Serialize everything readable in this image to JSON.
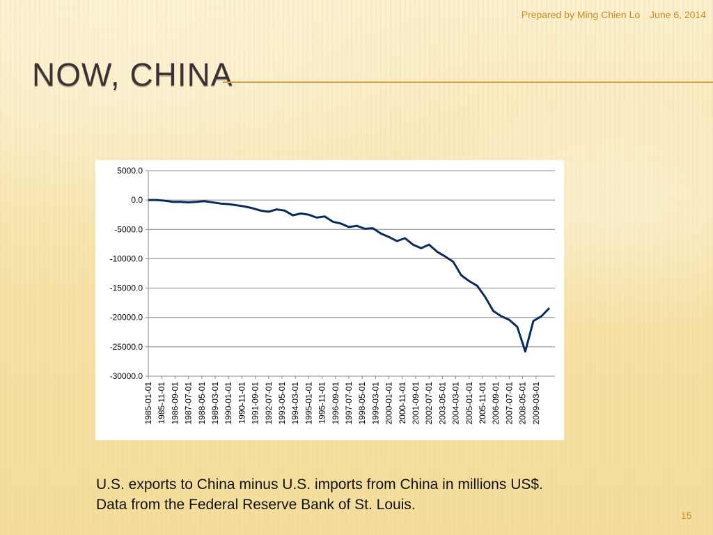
{
  "slide": {
    "author_note": "Prepared by Ming Chien Lo",
    "date": "June 6, 2014",
    "title": "Now, China",
    "caption": "U.S. exports to China minus U.S. imports from China in millions US$. Data from the Federal Reserve Bank of St. Louis.",
    "page_number": "15"
  },
  "colors": {
    "line": "#0b2a5c",
    "grid": "#888888",
    "accent": "#c48a2a",
    "title": "#3b3333"
  },
  "chart_data": {
    "type": "line",
    "title": "",
    "xlabel": "",
    "ylabel": "",
    "ylim": [
      -30000,
      5000
    ],
    "ytick_labels": [
      "5000.0",
      "0.0",
      "-5000.0",
      "-10000.0",
      "-15000.0",
      "-20000.0",
      "-25000.0",
      "-30000.0"
    ],
    "ytick_values": [
      5000,
      0,
      -5000,
      -10000,
      -15000,
      -20000,
      -25000,
      -30000
    ],
    "xtick_labels": [
      "1985-01-01",
      "1985-11-01",
      "1986-09-01",
      "1987-07-01",
      "1988-05-01",
      "1989-03-01",
      "1990-01-01",
      "1990-11-01",
      "1991-09-01",
      "1992-07-01",
      "1993-05-01",
      "1994-03-01",
      "1995-01-01",
      "1995-11-01",
      "1996-09-01",
      "1997-07-01",
      "1998-05-01",
      "1999-03-01",
      "2000-01-01",
      "2000-11-01",
      "2001-09-01",
      "2002-07-01",
      "2003-05-01",
      "2004-03-01",
      "2005-01-01",
      "2005-11-01",
      "2006-09-01",
      "2007-07-01",
      "2008-05-01",
      "2009-03-01"
    ],
    "grid": true,
    "legend": "none",
    "series": [
      {
        "x": [
          "1985-01",
          "1985-07",
          "1986-01",
          "1986-07",
          "1987-01",
          "1987-07",
          "1988-01",
          "1988-07",
          "1989-01",
          "1989-07",
          "1990-01",
          "1990-07",
          "1991-01",
          "1991-07",
          "1992-01",
          "1992-07",
          "1993-01",
          "1993-07",
          "1994-01",
          "1994-07",
          "1995-01",
          "1995-07",
          "1996-01",
          "1996-07",
          "1997-01",
          "1997-07",
          "1998-01",
          "1998-07",
          "1999-01",
          "1999-07",
          "2000-01",
          "2000-07",
          "2001-01",
          "2001-07",
          "2002-01",
          "2002-07",
          "2003-01",
          "2003-07",
          "2004-01",
          "2004-07",
          "2005-01",
          "2005-07",
          "2006-01",
          "2006-07",
          "2007-01",
          "2007-07",
          "2008-01",
          "2008-07",
          "2009-01",
          "2009-07",
          "2010-01"
        ],
        "values": [
          0,
          0,
          -100,
          -300,
          -300,
          -400,
          -300,
          -200,
          -400,
          -600,
          -700,
          -900,
          -1100,
          -1400,
          -1800,
          -2000,
          -1600,
          -1800,
          -2600,
          -2300,
          -2500,
          -3000,
          -2800,
          -3700,
          -4000,
          -4600,
          -4400,
          -4900,
          -4800,
          -5700,
          -6300,
          -7000,
          -6500,
          -7600,
          -8200,
          -7600,
          -8800,
          -9600,
          -10500,
          -12800,
          -13800,
          -14600,
          -16500,
          -18900,
          -19800,
          -20400,
          -21600,
          -25800,
          -20600,
          -19800,
          -18400
        ]
      }
    ]
  }
}
